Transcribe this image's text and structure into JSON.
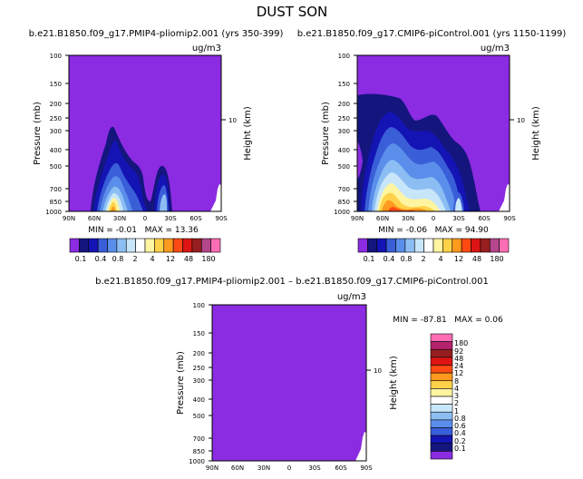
{
  "main_title": "DUST SON",
  "chart_data": [
    {
      "type": "contour",
      "title": "b.e21.B1850.f09_g17.PMIP4-pliomip2.001 (yrs 350-399)",
      "units": "ug/m3",
      "ylabel": "Pressure (mb)",
      "ylabel_right": "Height (km)",
      "y_ticks": [
        "100",
        "150",
        "200",
        "250",
        "300",
        "400",
        "500",
        "700",
        "850",
        "1000"
      ],
      "y_ticks_right": [
        "10"
      ],
      "x_ticks": [
        "90N",
        "60N",
        "30N",
        "0",
        "30S",
        "60S",
        "90S"
      ],
      "stats": "MIN = -0.01   MAX = 13.36",
      "colorbar": {
        "orientation": "horizontal",
        "labels": [
          "0.1",
          "0.4",
          "0.8",
          "2",
          "4",
          "12",
          "48",
          "180"
        ]
      }
    },
    {
      "type": "contour",
      "title": "b.e21.B1850.f09_g17.CMIP6-piControl.001 (yrs 1150-1199)",
      "units": "ug/m3",
      "ylabel": "Pressure (mb)",
      "ylabel_right": "Height (km)",
      "y_ticks": [
        "100",
        "150",
        "200",
        "250",
        "300",
        "400",
        "500",
        "700",
        "850",
        "1000"
      ],
      "y_ticks_right": [
        "10"
      ],
      "x_ticks": [
        "90N",
        "60N",
        "30N",
        "0",
        "30S",
        "60S",
        "90S"
      ],
      "stats": "MIN = -0.06   MAX = 94.90",
      "colorbar": {
        "orientation": "horizontal",
        "labels": [
          "0.1",
          "0.4",
          "0.8",
          "2",
          "4",
          "12",
          "48",
          "180"
        ]
      }
    },
    {
      "type": "contour",
      "title": "b.e21.B1850.f09_g17.PMIP4-pliomip2.001 – b.e21.B1850.f09_g17.CMIP6-piControl.001",
      "units": "ug/m3",
      "ylabel": "Pressure (mb)",
      "ylabel_right": "Height (km)",
      "y_ticks": [
        "100",
        "150",
        "200",
        "250",
        "300",
        "400",
        "500",
        "700",
        "850",
        "1000"
      ],
      "y_ticks_right": [
        "10"
      ],
      "x_ticks": [
        "90N",
        "60N",
        "30N",
        "0",
        "30S",
        "60S",
        "90S"
      ],
      "stats": "MIN = -87.81   MAX = 0.06",
      "colorbar": {
        "orientation": "vertical",
        "labels": [
          "180",
          "92",
          "48",
          "24",
          "12",
          "8",
          "4",
          "3",
          "2",
          "1",
          "0.8",
          "0.6",
          "0.4",
          "0.2",
          "0.1"
        ]
      }
    }
  ],
  "colors": {
    "h_colorbar": [
      "#8b2be2",
      "#15157e",
      "#1414b4",
      "#3a5ed8",
      "#5a8eea",
      "#8cbef4",
      "#c8e6fa",
      "#ffffff",
      "#fff5a0",
      "#ffd24a",
      "#ff9a1e",
      "#ff4a14",
      "#dc1414",
      "#961e1e",
      "#b4468c",
      "#ff6eb4"
    ],
    "v_colorbar": [
      "#ff6eb4",
      "#b4226e",
      "#961e1e",
      "#dc1414",
      "#ff4a14",
      "#ff9a1e",
      "#ffd24a",
      "#fff5a0",
      "#ffffff",
      "#c8e6fa",
      "#8cbef4",
      "#5a8eea",
      "#3a5ed8",
      "#1414b4",
      "#15157e",
      "#8b2be2"
    ],
    "background": "#8b2be2"
  }
}
